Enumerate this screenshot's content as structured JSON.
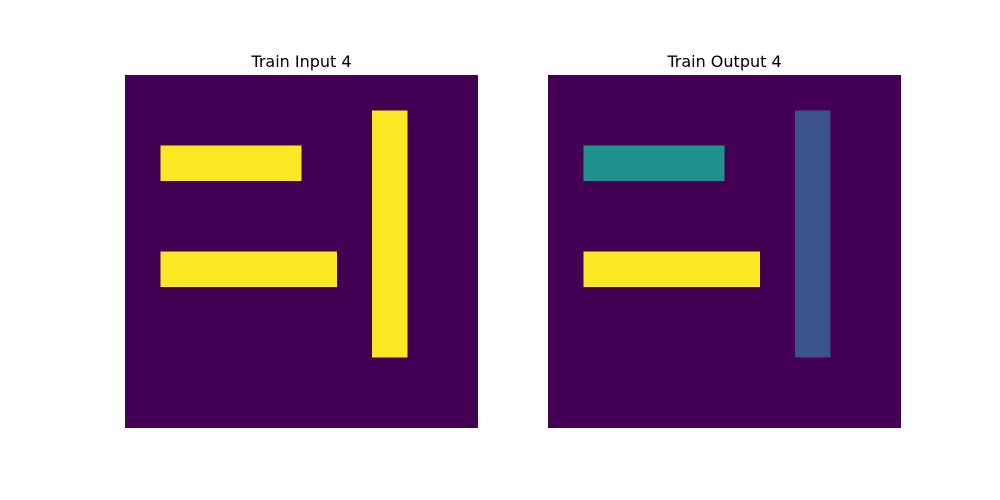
{
  "palette": {
    "0": "#440154",
    "1": "#3b528b",
    "2": "#21918c",
    "4": "#fde725"
  },
  "panels": [
    {
      "title": "Train Input 4",
      "grid": [
        [
          0,
          0,
          0,
          0,
          0,
          0,
          0,
          0,
          0,
          0
        ],
        [
          0,
          0,
          0,
          0,
          0,
          0,
          0,
          4,
          0,
          0
        ],
        [
          0,
          4,
          4,
          4,
          4,
          0,
          0,
          4,
          0,
          0
        ],
        [
          0,
          0,
          0,
          0,
          0,
          0,
          0,
          4,
          0,
          0
        ],
        [
          0,
          0,
          0,
          0,
          0,
          0,
          0,
          4,
          0,
          0
        ],
        [
          0,
          4,
          4,
          4,
          4,
          4,
          0,
          4,
          0,
          0
        ],
        [
          0,
          0,
          0,
          0,
          0,
          0,
          0,
          4,
          0,
          0
        ],
        [
          0,
          0,
          0,
          0,
          0,
          0,
          0,
          4,
          0,
          0
        ],
        [
          0,
          0,
          0,
          0,
          0,
          0,
          0,
          0,
          0,
          0
        ],
        [
          0,
          0,
          0,
          0,
          0,
          0,
          0,
          0,
          0,
          0
        ]
      ]
    },
    {
      "title": "Train Output 4",
      "grid": [
        [
          0,
          0,
          0,
          0,
          0,
          0,
          0,
          0,
          0,
          0
        ],
        [
          0,
          0,
          0,
          0,
          0,
          0,
          0,
          1,
          0,
          0
        ],
        [
          0,
          2,
          2,
          2,
          2,
          0,
          0,
          1,
          0,
          0
        ],
        [
          0,
          0,
          0,
          0,
          0,
          0,
          0,
          1,
          0,
          0
        ],
        [
          0,
          0,
          0,
          0,
          0,
          0,
          0,
          1,
          0,
          0
        ],
        [
          0,
          4,
          4,
          4,
          4,
          4,
          0,
          1,
          0,
          0
        ],
        [
          0,
          0,
          0,
          0,
          0,
          0,
          0,
          1,
          0,
          0
        ],
        [
          0,
          0,
          0,
          0,
          0,
          0,
          0,
          1,
          0,
          0
        ],
        [
          0,
          0,
          0,
          0,
          0,
          0,
          0,
          0,
          0,
          0
        ],
        [
          0,
          0,
          0,
          0,
          0,
          0,
          0,
          0,
          0,
          0
        ]
      ]
    }
  ]
}
